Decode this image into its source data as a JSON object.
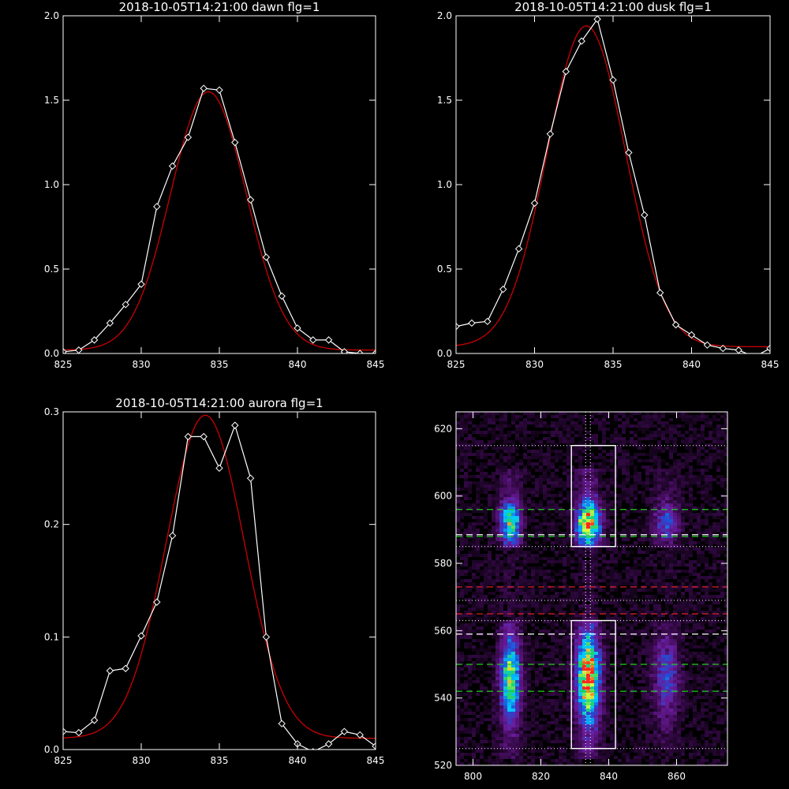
{
  "chart_data": [
    {
      "type": "line",
      "title": "2018-10-05T14:21:00 dawn flg=1",
      "xlim": [
        825,
        845
      ],
      "ylim": [
        0,
        2.0
      ],
      "xticks": [
        825,
        830,
        835,
        840,
        845
      ],
      "yticks": [
        0.0,
        0.5,
        1.0,
        1.5,
        2.0
      ],
      "xtick_labels": [
        "825",
        "830",
        "835",
        "840",
        "845"
      ],
      "ytick_labels": [
        "0.0",
        "0.5",
        "1.0",
        "1.5",
        "2.0"
      ],
      "colors": {
        "data": "#ffffff",
        "fit": "#cc0000",
        "axes": "#ffffff"
      },
      "series": [
        {
          "role": "data",
          "markers": "diamond",
          "x": [
            825,
            826,
            827,
            828,
            829,
            830,
            831,
            832,
            833,
            834,
            835,
            836,
            837,
            838,
            839,
            840,
            841,
            842,
            843,
            844,
            845
          ],
          "y": [
            0.01,
            0.02,
            0.08,
            0.18,
            0.29,
            0.41,
            0.87,
            1.11,
            1.28,
            1.57,
            1.56,
            1.25,
            0.91,
            0.57,
            0.34,
            0.15,
            0.08,
            0.08,
            0.01,
            0.0,
            0.0
          ]
        },
        {
          "role": "fit",
          "shape": "gaussian",
          "amplitude": 1.53,
          "center": 834.3,
          "sigma": 2.42,
          "offset": 0.02
        }
      ]
    },
    {
      "type": "line",
      "title": "2018-10-05T14:21:00 dusk flg=1",
      "xlim": [
        825,
        845
      ],
      "ylim": [
        0,
        2.0
      ],
      "xticks": [
        825,
        830,
        835,
        840,
        845
      ],
      "yticks": [
        0.0,
        0.5,
        1.0,
        1.5,
        2.0
      ],
      "xtick_labels": [
        "825",
        "830",
        "835",
        "840",
        "845"
      ],
      "ytick_labels": [
        "0.0",
        "0.5",
        "1.0",
        "1.5",
        "2.0"
      ],
      "colors": {
        "data": "#ffffff",
        "fit": "#cc0000",
        "axes": "#ffffff"
      },
      "series": [
        {
          "role": "data",
          "markers": "diamond",
          "x": [
            825,
            826,
            827,
            828,
            829,
            830,
            831,
            832,
            833,
            834,
            835,
            836,
            837,
            838,
            839,
            840,
            841,
            842,
            843,
            844,
            845
          ],
          "y": [
            0.16,
            0.18,
            0.19,
            0.38,
            0.62,
            0.89,
            1.3,
            1.67,
            1.85,
            1.98,
            1.62,
            1.19,
            0.82,
            0.36,
            0.17,
            0.11,
            0.05,
            0.03,
            0.02,
            -0.02,
            0.03
          ]
        },
        {
          "role": "fit",
          "shape": "gaussian",
          "amplitude": 1.9,
          "center": 833.3,
          "sigma": 2.5,
          "offset": 0.04
        }
      ]
    },
    {
      "type": "line",
      "title": "2018-10-05T14:21:00 aurora flg=1",
      "xlim": [
        825,
        845
      ],
      "ylim": [
        0,
        0.3
      ],
      "xticks": [
        825,
        830,
        835,
        840,
        845
      ],
      "yticks": [
        0.0,
        0.1,
        0.2,
        0.3
      ],
      "xtick_labels": [
        "825",
        "830",
        "835",
        "840",
        "845"
      ],
      "ytick_labels": [
        "0.0",
        "0.1",
        "0.2",
        "0.3"
      ],
      "colors": {
        "data": "#ffffff",
        "fit": "#cc0000",
        "axes": "#ffffff"
      },
      "series": [
        {
          "role": "data",
          "markers": "diamond",
          "x": [
            825,
            826,
            827,
            828,
            829,
            830,
            831,
            832,
            833,
            834,
            835,
            836,
            837,
            838,
            839,
            840,
            841,
            842,
            843,
            844,
            845
          ],
          "y": [
            0.016,
            0.015,
            0.026,
            0.07,
            0.072,
            0.101,
            0.131,
            0.19,
            0.278,
            0.278,
            0.25,
            0.288,
            0.241,
            0.1,
            0.023,
            0.005,
            -0.002,
            0.005,
            0.016,
            0.013,
            0.003
          ]
        },
        {
          "role": "fit",
          "shape": "gaussian",
          "amplitude": 0.287,
          "center": 834.1,
          "sigma": 2.5,
          "offset": 0.01
        }
      ]
    },
    {
      "type": "heatmap",
      "title": "",
      "xlim": [
        795,
        875
      ],
      "ylim": [
        520,
        625
      ],
      "xticks": [
        800,
        820,
        840,
        860
      ],
      "yticks": [
        520,
        540,
        560,
        580,
        600,
        620
      ],
      "xtick_labels": [
        "800",
        "820",
        "840",
        "860"
      ],
      "ytick_labels": [
        "520",
        "540",
        "560",
        "580",
        "600",
        "620"
      ],
      "colormap": [
        "#000000",
        "#3a0a4e",
        "#6a1b9a",
        "#1f4fd8",
        "#00c8ff",
        "#22d36b",
        "#d9ff3a",
        "#ff2a1a"
      ],
      "emission_bands": [
        {
          "x_center": 811,
          "x_width": 7,
          "y_from": 522,
          "y_to": 608,
          "peak_level": 0.72
        },
        {
          "x_center": 834,
          "x_width": 8,
          "y_from": 522,
          "y_to": 608,
          "peak_level": 1.0
        },
        {
          "x_center": 857,
          "x_width": 9,
          "y_from": 525,
          "y_to": 608,
          "peak_level": 0.35
        }
      ],
      "boxes": [
        {
          "x0": 829,
          "x1": 842,
          "y0": 585,
          "y1": 615,
          "color": "#ffffff"
        },
        {
          "x0": 829,
          "x1": 842,
          "y0": 525,
          "y1": 563,
          "color": "#ffffff"
        }
      ],
      "hlines": [
        {
          "y": 615,
          "color": "#dddddd",
          "style": "dotted"
        },
        {
          "y": 596,
          "color": "#22cc22",
          "style": "dashed"
        },
        {
          "y": 588.5,
          "color": "#ffffff",
          "style": "dashed"
        },
        {
          "y": 588,
          "color": "#22cc22",
          "style": "dashed"
        },
        {
          "y": 585,
          "color": "#dddddd",
          "style": "dotted"
        },
        {
          "y": 573,
          "color": "#dd2222",
          "style": "dashed"
        },
        {
          "y": 569,
          "color": "#dddddd",
          "style": "dotted"
        },
        {
          "y": 565,
          "color": "#dd2222",
          "style": "dashed"
        },
        {
          "y": 563,
          "color": "#dddddd",
          "style": "dotted"
        },
        {
          "y": 559,
          "color": "#ffffff",
          "style": "dashed"
        },
        {
          "y": 550,
          "color": "#22cc22",
          "style": "dashed"
        },
        {
          "y": 542,
          "color": "#22cc22",
          "style": "dashed"
        },
        {
          "y": 525,
          "color": "#dddddd",
          "style": "dotted"
        }
      ],
      "vlines": [
        {
          "x": 833.2,
          "color": "#dddddd",
          "style": "dotted"
        },
        {
          "x": 834.6,
          "color": "#dddddd",
          "style": "dotted"
        }
      ]
    }
  ]
}
